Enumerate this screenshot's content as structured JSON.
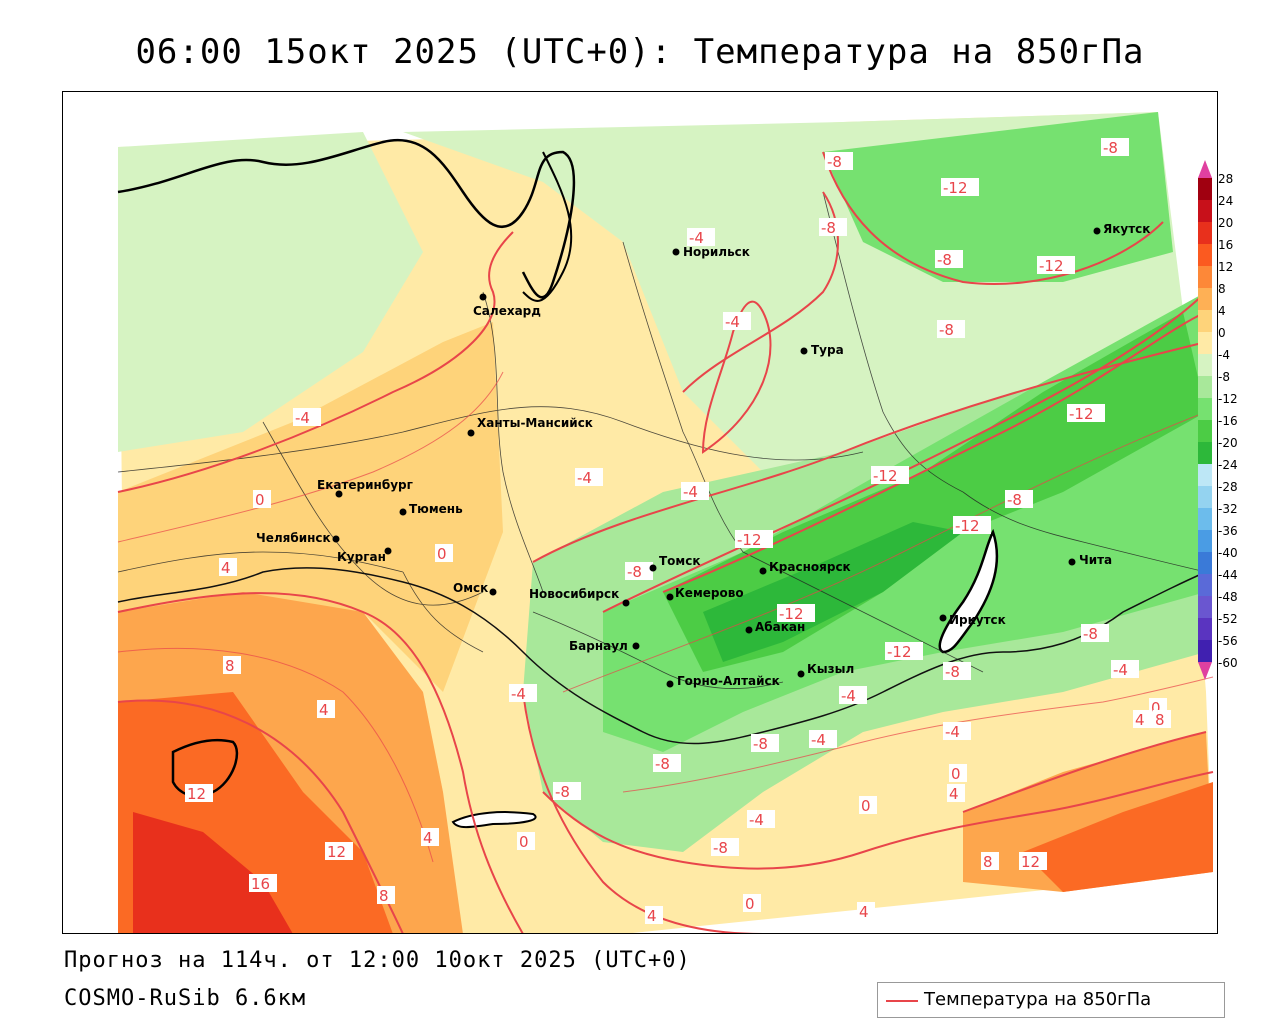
{
  "title": "06:00 15окт 2025 (UTC+0): Температура на 850гПа",
  "footer": {
    "forecast": "Прогноз на 114ч. от 12:00 10окт 2025 (UTC+0)",
    "model": "COSMO-RuSib 6.6км"
  },
  "legend": {
    "series_label": "Температура на 850гПа",
    "line_color": "#e8454a"
  },
  "colorbar": {
    "ticks": [
      "28",
      "24",
      "20",
      "16",
      "12",
      "8",
      "4",
      "0",
      "-4",
      "-8",
      "-12",
      "-16",
      "-20",
      "-24",
      "-28",
      "-32",
      "-36",
      "-40",
      "-44",
      "-48",
      "-52",
      "-56",
      "-60"
    ]
  },
  "cities": [
    {
      "name": "Норильск"
    },
    {
      "name": "Салехард"
    },
    {
      "name": "Тура"
    },
    {
      "name": "Якутск"
    },
    {
      "name": "Ханты-Мансийск"
    },
    {
      "name": "Екатеринбург"
    },
    {
      "name": "Тюмень"
    },
    {
      "name": "Челябинск"
    },
    {
      "name": "Курган"
    },
    {
      "name": "Омск"
    },
    {
      "name": "Томск"
    },
    {
      "name": "Красноярск"
    },
    {
      "name": "Новосибирск"
    },
    {
      "name": "Кемерово"
    },
    {
      "name": "Абакан"
    },
    {
      "name": "Барнаул"
    },
    {
      "name": "Горно-Алтайск"
    },
    {
      "name": "Кызыл"
    },
    {
      "name": "Иркутск"
    },
    {
      "name": "Чита"
    }
  ],
  "isotherm_labels": [
    "-8",
    "-8",
    "-12",
    "-8",
    "-8",
    "-12",
    "-4",
    "-4",
    "-8",
    "-12",
    "-4",
    "-4",
    "-12",
    "-8",
    "-12",
    "-12",
    "-8",
    "-4",
    "-12",
    "-12",
    "-8",
    "-8",
    "-4",
    "-4",
    "-4",
    "-4",
    "-8",
    "-8",
    "-4",
    "-8",
    "-4",
    "-8",
    "0",
    "4",
    "0",
    "8",
    "4",
    "12",
    "16",
    "12",
    "8",
    "4",
    "0",
    "4",
    "0",
    "4",
    "0",
    "8",
    "12",
    "4",
    "8",
    "0",
    "0",
    "4",
    "8"
  ]
}
